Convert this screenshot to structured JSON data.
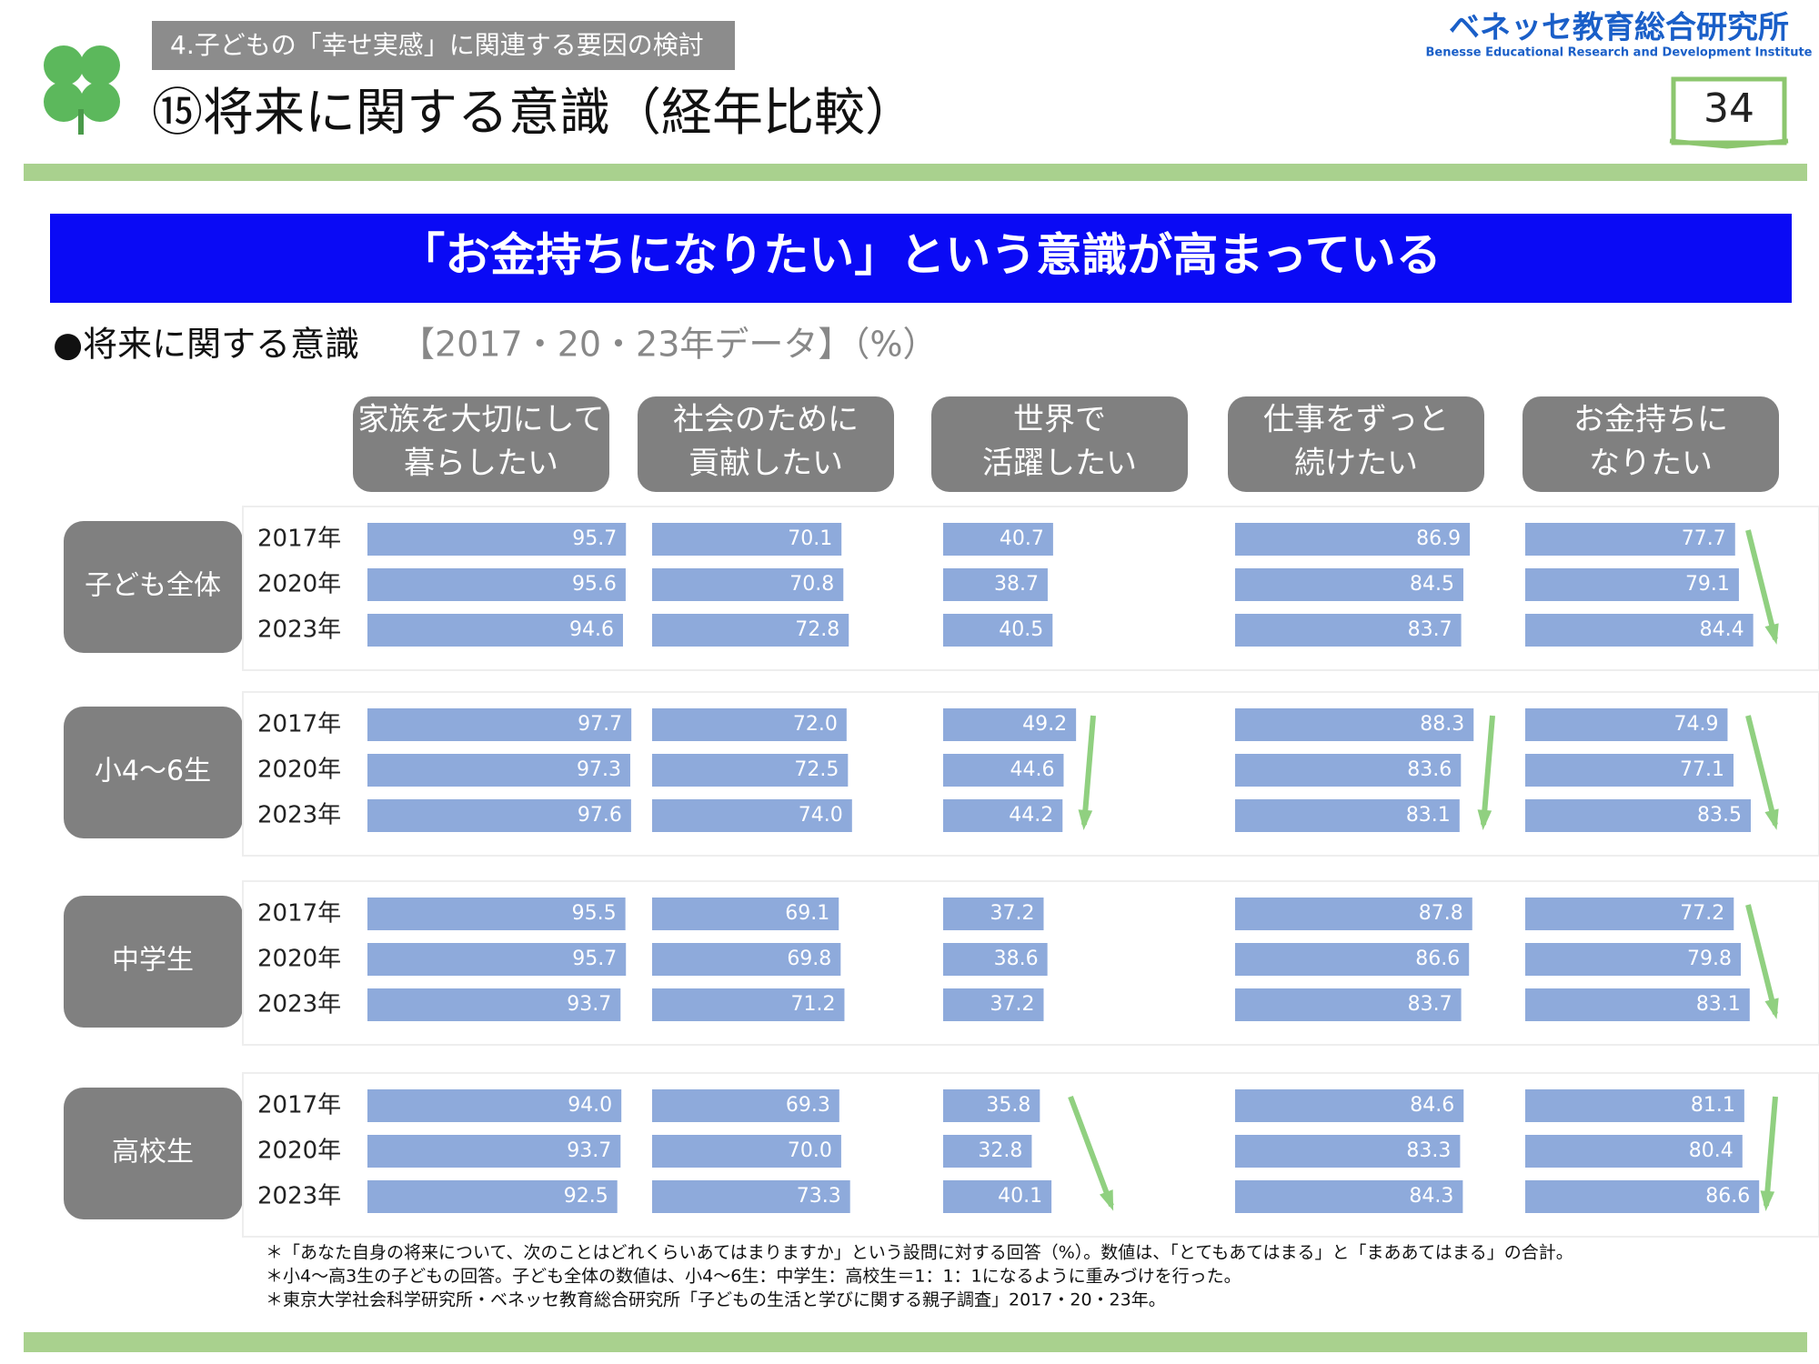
{
  "header": {
    "section": "4.子どもの「幸せ実感」に関連する要因の検討",
    "title": "⑮将来に関する意識（経年比較）",
    "logo": "ベネッセ教育総合研究所",
    "logo_sub": "Benesse  Educational Research and Development Institute",
    "page": "34"
  },
  "banner": "「お金持ちになりたい」という意識が高まっている",
  "subtitle": "●将来に関する意識",
  "subtitle_note": "【2017・20・23年データ】（%）",
  "groups": [
    "子ども全体",
    "小4～6生",
    "中学生",
    "高校生"
  ],
  "years": [
    "2017年",
    "2020年",
    "2023年"
  ],
  "chart_data": [
    {
      "type": "bar",
      "title": [
        "家族を大切にして",
        "暮らしたい"
      ],
      "color": "#8eaadb",
      "values": [
        [
          95.7,
          95.6,
          94.6
        ],
        [
          97.7,
          97.3,
          97.6
        ],
        [
          95.5,
          95.7,
          93.7
        ],
        [
          94.0,
          93.7,
          92.5
        ]
      ],
      "value_labels": [
        [
          "95.7",
          "95.6",
          "94.6"
        ],
        [
          "97.7",
          "97.3",
          "97.6"
        ],
        [
          "95.5",
          "95.7",
          "93.7"
        ],
        [
          "94.0",
          "93.7",
          "92.5"
        ]
      ]
    },
    {
      "type": "bar",
      "title": [
        "社会のために",
        "貢献したい"
      ],
      "color": "#8eaadb",
      "values": [
        [
          70.1,
          70.8,
          72.8
        ],
        [
          72.0,
          72.5,
          74.0
        ],
        [
          69.1,
          69.8,
          71.2
        ],
        [
          69.3,
          70.0,
          73.3
        ]
      ],
      "value_labels": [
        [
          "70.1",
          "70.8",
          "72.8"
        ],
        [
          "72.0",
          "72.5",
          "74.0"
        ],
        [
          "69.1",
          "69.8",
          "71.2"
        ],
        [
          "69.3",
          "70.0",
          "73.3"
        ]
      ]
    },
    {
      "type": "bar",
      "title": [
        "世界で",
        "活躍したい"
      ],
      "color": "#8eaadb",
      "values": [
        [
          40.7,
          38.7,
          40.5
        ],
        [
          49.2,
          44.6,
          44.2
        ],
        [
          37.2,
          38.6,
          37.2
        ],
        [
          35.8,
          32.8,
          40.1
        ]
      ],
      "value_labels": [
        [
          "40.7",
          "38.7",
          "40.5"
        ],
        [
          "49.2",
          "44.6",
          "44.2"
        ],
        [
          "37.2",
          "38.6",
          "37.2"
        ],
        [
          "35.8",
          "32.8",
          "40.1"
        ]
      ]
    },
    {
      "type": "bar",
      "title": [
        "仕事をずっと",
        "続けたい"
      ],
      "color": "#8eaadb",
      "values": [
        [
          86.9,
          84.5,
          83.7
        ],
        [
          88.3,
          83.6,
          83.1
        ],
        [
          87.8,
          86.6,
          83.7
        ],
        [
          84.6,
          83.3,
          84.3
        ]
      ],
      "value_labels": [
        [
          "86.9",
          "84.5",
          "83.7"
        ],
        [
          "88.3",
          "83.6",
          "83.1"
        ],
        [
          "87.8",
          "86.6",
          "83.7"
        ],
        [
          "84.6",
          "83.3",
          "84.3"
        ]
      ]
    },
    {
      "type": "bar",
      "title": [
        "お金持ちに",
        "なりたい"
      ],
      "color": "#8eaadb",
      "values": [
        [
          77.7,
          79.1,
          84.4
        ],
        [
          74.9,
          77.1,
          83.5
        ],
        [
          77.2,
          79.8,
          83.1
        ],
        [
          81.1,
          80.4,
          86.6
        ]
      ],
      "value_labels": [
        [
          "77.7",
          "79.1",
          "84.4"
        ],
        [
          "74.9",
          "77.1",
          "83.5"
        ],
        [
          "77.2",
          "79.8",
          "83.1"
        ],
        [
          "81.1",
          "80.4",
          "86.6"
        ]
      ]
    }
  ],
  "footnotes": [
    "＊「あなた自身の将来について、次のことはどれくらいあてはまりますか」という設問に対する回答（%）。数値は、「とてもあてはまる」と「まああてはまる」の合計。",
    "＊小4～高3生の子どもの回答。子ども全体の数値は、小4～6生：中学生：高校生＝1：1：1になるように重みづけを行った。",
    "＊東京大学社会科学研究所・ベネッセ教育総合研究所「子どもの生活と学びに関する親子調査」2017・20・23年。"
  ]
}
